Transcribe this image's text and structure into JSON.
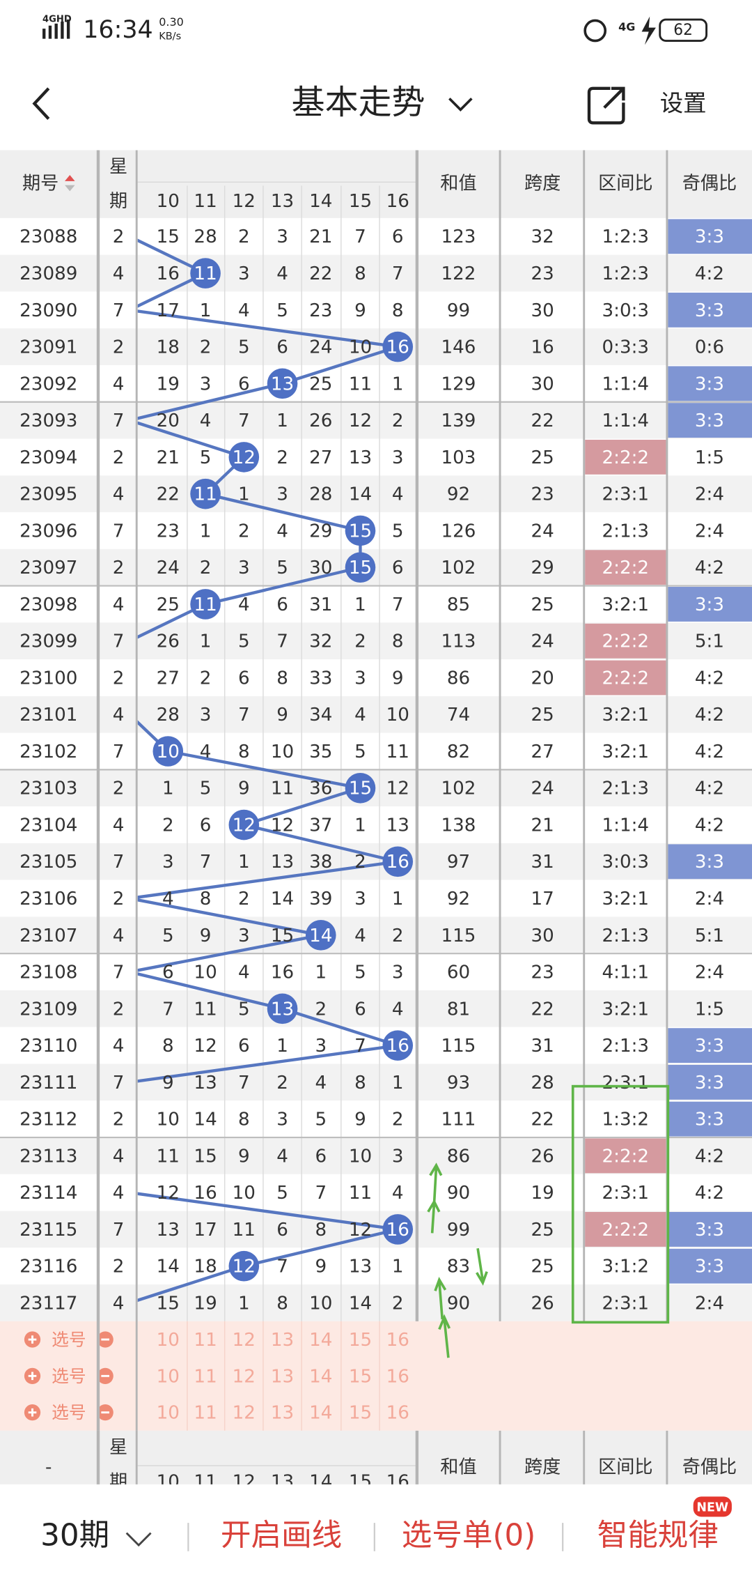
{
  "status_bar": {
    "network": "4GHD",
    "time": "16:34",
    "speed": "0.30",
    "speed_unit": "KB/s",
    "signal": "4G",
    "battery": "62"
  },
  "header": {
    "title": "基本走势",
    "settings": "设置"
  },
  "table": {
    "columns": {
      "period": "期号",
      "weekday": [
        "星",
        "期"
      ],
      "numbers": [
        10,
        11,
        12,
        13,
        14,
        15,
        16
      ],
      "sum": "和值",
      "span": "跨度",
      "range_ratio": "区间比",
      "odd_even_ratio": "奇偶比"
    },
    "rows": [
      [
        23088,
        2,
        [
          15,
          28,
          2,
          3,
          21,
          7,
          6
        ],
        123,
        32,
        "1:2:3",
        "3:3"
      ],
      [
        23089,
        4,
        [
          16,
          11,
          3,
          4,
          22,
          8,
          7
        ],
        122,
        23,
        "1:2:3",
        "4:2"
      ],
      [
        23090,
        7,
        [
          17,
          1,
          4,
          5,
          23,
          9,
          8
        ],
        99,
        30,
        "3:0:3",
        "3:3"
      ],
      [
        23091,
        2,
        [
          18,
          2,
          5,
          6,
          24,
          10,
          16
        ],
        146,
        16,
        "0:3:3",
        "0:6"
      ],
      [
        23092,
        4,
        [
          19,
          3,
          6,
          13,
          25,
          11,
          1
        ],
        129,
        30,
        "1:1:4",
        "3:3"
      ],
      [
        23093,
        7,
        [
          20,
          4,
          7,
          1,
          26,
          12,
          2
        ],
        139,
        22,
        "1:1:4",
        "3:3"
      ],
      [
        23094,
        2,
        [
          21,
          5,
          12,
          2,
          27,
          13,
          3
        ],
        103,
        25,
        "2:2:2",
        "1:5"
      ],
      [
        23095,
        4,
        [
          22,
          11,
          1,
          3,
          28,
          14,
          4
        ],
        92,
        23,
        "2:3:1",
        "2:4"
      ],
      [
        23096,
        7,
        [
          23,
          1,
          2,
          4,
          29,
          15,
          5
        ],
        126,
        24,
        "2:1:3",
        "2:4"
      ],
      [
        23097,
        2,
        [
          24,
          2,
          3,
          5,
          30,
          15,
          6
        ],
        102,
        29,
        "2:2:2",
        "4:2"
      ],
      [
        23098,
        4,
        [
          25,
          11,
          4,
          6,
          31,
          1,
          7
        ],
        85,
        25,
        "3:2:1",
        "3:3"
      ],
      [
        23099,
        7,
        [
          26,
          1,
          5,
          7,
          32,
          2,
          8
        ],
        113,
        24,
        "2:2:2",
        "5:1"
      ],
      [
        23100,
        2,
        [
          27,
          2,
          6,
          8,
          33,
          3,
          9
        ],
        86,
        20,
        "2:2:2",
        "4:2"
      ],
      [
        23101,
        4,
        [
          28,
          3,
          7,
          9,
          34,
          4,
          10
        ],
        74,
        25,
        "3:2:1",
        "4:2"
      ],
      [
        23102,
        7,
        [
          10,
          4,
          8,
          10,
          35,
          5,
          11
        ],
        82,
        27,
        "3:2:1",
        "4:2"
      ],
      [
        23103,
        2,
        [
          1,
          5,
          9,
          11,
          36,
          15,
          12
        ],
        102,
        24,
        "2:1:3",
        "4:2"
      ],
      [
        23104,
        4,
        [
          2,
          6,
          12,
          12,
          37,
          1,
          13
        ],
        138,
        21,
        "1:1:4",
        "4:2"
      ],
      [
        23105,
        7,
        [
          3,
          7,
          1,
          13,
          38,
          2,
          16
        ],
        97,
        31,
        "3:0:3",
        "3:3"
      ],
      [
        23106,
        2,
        [
          4,
          8,
          2,
          14,
          39,
          3,
          1
        ],
        92,
        17,
        "3:2:1",
        "2:4"
      ],
      [
        23107,
        4,
        [
          5,
          9,
          3,
          15,
          14,
          4,
          2
        ],
        115,
        30,
        "2:1:3",
        "5:1"
      ],
      [
        23108,
        7,
        [
          6,
          10,
          4,
          16,
          1,
          5,
          3
        ],
        60,
        23,
        "4:1:1",
        "2:4"
      ],
      [
        23109,
        2,
        [
          7,
          11,
          5,
          13,
          2,
          6,
          4
        ],
        81,
        22,
        "3:2:1",
        "1:5"
      ],
      [
        23110,
        4,
        [
          8,
          12,
          6,
          1,
          3,
          7,
          16
        ],
        115,
        31,
        "2:1:3",
        "3:3"
      ],
      [
        23111,
        7,
        [
          9,
          13,
          7,
          2,
          4,
          8,
          1
        ],
        93,
        28,
        "2:3:1",
        "3:3"
      ],
      [
        23112,
        2,
        [
          10,
          14,
          8,
          3,
          5,
          9,
          2
        ],
        111,
        22,
        "1:3:2",
        "3:3"
      ],
      [
        23113,
        4,
        [
          11,
          15,
          9,
          4,
          6,
          10,
          3
        ],
        86,
        26,
        "2:2:2",
        "4:2"
      ],
      [
        23114,
        4,
        [
          12,
          16,
          10,
          5,
          7,
          11,
          4
        ],
        90,
        19,
        "2:3:1",
        "4:2"
      ],
      [
        23115,
        7,
        [
          13,
          17,
          11,
          6,
          8,
          12,
          16
        ],
        99,
        25,
        "2:2:2",
        "3:3"
      ],
      [
        23116,
        2,
        [
          14,
          18,
          12,
          7,
          9,
          13,
          1
        ],
        83,
        25,
        "3:1:2",
        "3:3"
      ],
      [
        23117,
        4,
        [
          15,
          19,
          1,
          8,
          10,
          14,
          2
        ],
        90,
        26,
        "2:3:1",
        "2:4"
      ]
    ],
    "ball_columns": [
      null,
      1,
      null,
      6,
      3,
      null,
      2,
      1,
      5,
      5,
      1,
      null,
      null,
      null,
      0,
      5,
      2,
      6,
      null,
      4,
      null,
      3,
      6,
      null,
      null,
      null,
      null,
      6,
      2,
      null
    ],
    "range_highlight_rows": [
      6,
      9,
      11,
      12,
      25,
      27
    ],
    "odd_even_highlight_rows": [
      0,
      2,
      4,
      5,
      10,
      17,
      22,
      23,
      24,
      27,
      28
    ],
    "select": {
      "label": "选号",
      "numbers": [
        10,
        11,
        12,
        13,
        14,
        15,
        16
      ]
    },
    "bottom_header": {
      "dash": "-"
    }
  },
  "footer": {
    "periods": "30期",
    "draw_lines": "开启画线",
    "pick_list": "选号单(0)",
    "smart": "智能规律",
    "badge": "NEW"
  }
}
